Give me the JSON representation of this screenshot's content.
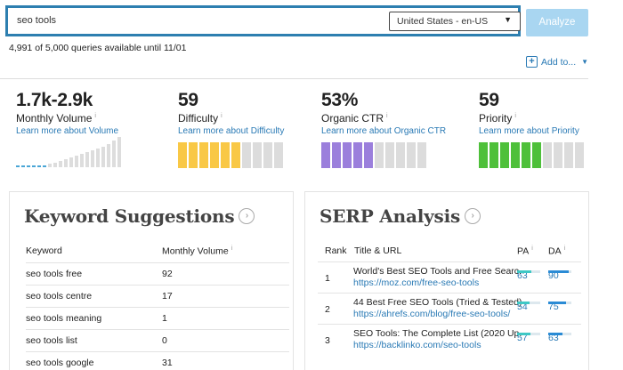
{
  "search": {
    "query": "seo tools",
    "locale": "United States - en-US",
    "analyze_label": "Analyze"
  },
  "quota": "4,991 of 5,000 queries available until 11/01",
  "add_to": "Add to...",
  "metrics": [
    {
      "value": "1.7k-2.9k",
      "label": "Monthly Volume",
      "learn": "Learn more about Volume"
    },
    {
      "value": "59",
      "label": "Difficulty",
      "learn": "Learn more about Difficulty",
      "color": "#f9c846",
      "filled": 6,
      "segments": 10
    },
    {
      "value": "53%",
      "label": "Organic CTR",
      "learn": "Learn more about Organic CTR",
      "color": "#9b7fdc",
      "filled": 5,
      "segments": 10
    },
    {
      "value": "59",
      "label": "Priority",
      "learn": "Learn more about Priority",
      "color": "#4ec03a",
      "filled": 6,
      "segments": 10
    }
  ],
  "keywords": {
    "title": "Keyword Suggestions",
    "col_keyword": "Keyword",
    "col_volume": "Monthly Volume",
    "rows": [
      {
        "keyword": "seo tools free",
        "volume": "92"
      },
      {
        "keyword": "seo tools centre",
        "volume": "17"
      },
      {
        "keyword": "seo tools meaning",
        "volume": "1"
      },
      {
        "keyword": "seo tools list",
        "volume": "0"
      },
      {
        "keyword": "seo tools google",
        "volume": "31"
      }
    ]
  },
  "serp": {
    "title": "SERP Analysis",
    "col_rank": "Rank",
    "col_title": "Title & URL",
    "col_pa": "PA",
    "col_da": "DA",
    "rows": [
      {
        "rank": "1",
        "title": "World's Best SEO Tools and Free Searc...",
        "url": "https://moz.com/free-seo-tools",
        "pa": "63",
        "da": "90"
      },
      {
        "rank": "2",
        "title": "44 Best Free SEO Tools (Tried & Tested)...",
        "url": "https://ahrefs.com/blog/free-seo-tools/",
        "pa": "54",
        "da": "75"
      },
      {
        "rank": "3",
        "title": "SEO Tools: The Complete List (2020 Up...",
        "url": "https://backlinko.com/seo-tools",
        "pa": "57",
        "da": "63"
      }
    ]
  },
  "colors": {
    "accent": "#2d7fb0",
    "link": "#2a7ab5"
  }
}
